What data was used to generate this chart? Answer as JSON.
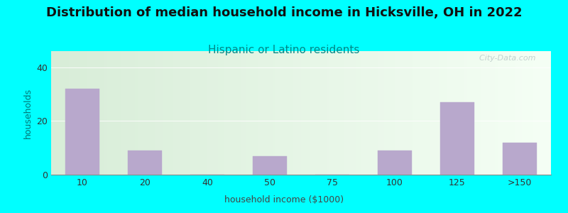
{
  "title": "Distribution of median household income in Hicksville, OH in 2022",
  "subtitle": "Hispanic or Latino residents",
  "xlabel": "household income ($1000)",
  "ylabel": "households",
  "categories": [
    "10",
    "20",
    "40",
    "50",
    "75",
    "100",
    "125",
    ">150"
  ],
  "values": [
    32,
    9,
    0,
    7,
    0,
    9,
    27,
    12
  ],
  "bar_color": "#b8a8cc",
  "background_outer": "#00FFFF",
  "background_chart_left": "#d8edd8",
  "background_chart_right": "#f5fff5",
  "ylim": [
    0,
    46
  ],
  "yticks": [
    0,
    20,
    40
  ],
  "watermark": "  City-Data.com",
  "title_fontsize": 13,
  "subtitle_fontsize": 11,
  "subtitle_color": "#008888",
  "ylabel_color": "#007777",
  "xlabel_color": "#444444",
  "tick_color": "#333333",
  "title_color": "#111111"
}
